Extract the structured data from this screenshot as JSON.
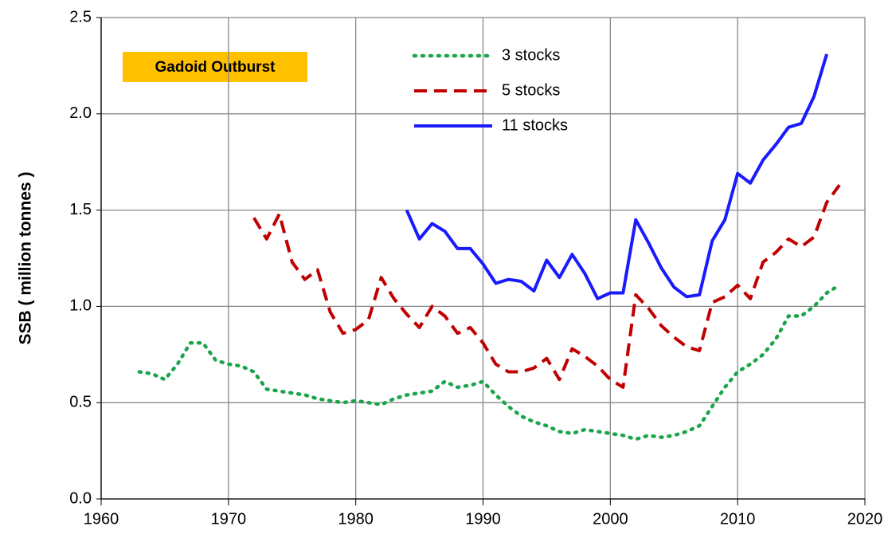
{
  "chart_data": {
    "type": "line",
    "ylabel": "SSB ( million tonnes )",
    "annotation": "Gadoid Outburst",
    "legend": "upper center",
    "grid": true,
    "xlim": [
      1960,
      2020
    ],
    "xticks": [
      1960,
      1970,
      1980,
      1990,
      2000,
      2010,
      2020
    ],
    "ylim": [
      0,
      2.5
    ],
    "yticks": [
      {
        "value": 0,
        "label": "0.0"
      },
      0.5,
      {
        "value": 1,
        "label": "1.0"
      },
      1.5,
      {
        "value": 2,
        "label": "2.0"
      },
      2.5
    ],
    "x": [
      1963,
      1964,
      1965,
      1966,
      1967,
      1968,
      1969,
      1970,
      1971,
      1972,
      1973,
      1974,
      1975,
      1976,
      1977,
      1978,
      1979,
      1980,
      1981,
      1982,
      1983,
      1984,
      1985,
      1986,
      1987,
      1988,
      1989,
      1990,
      1991,
      1992,
      1993,
      1994,
      1995,
      1996,
      1997,
      1998,
      1999,
      2000,
      2001,
      2002,
      2003,
      2004,
      2005,
      2006,
      2007,
      2008,
      2009,
      2010,
      2011,
      2012,
      2013,
      2014,
      2015,
      2016,
      2017,
      2018
    ],
    "series": [
      {
        "name": "3 stocks",
        "color": "#1aa54a",
        "style": "dotted",
        "values": [
          0.66,
          0.65,
          0.62,
          0.7,
          0.81,
          0.81,
          0.72,
          0.7,
          0.69,
          0.66,
          0.57,
          0.56,
          0.55,
          0.54,
          0.52,
          0.51,
          0.5,
          0.51,
          0.5,
          0.49,
          0.52,
          0.54,
          0.55,
          0.56,
          0.61,
          0.58,
          0.59,
          0.61,
          0.54,
          0.48,
          0.43,
          0.4,
          0.38,
          0.35,
          0.34,
          0.36,
          0.35,
          0.34,
          0.33,
          0.31,
          0.33,
          0.32,
          0.33,
          0.35,
          0.38,
          0.48,
          0.58,
          0.66,
          0.7,
          0.75,
          0.83,
          0.95,
          0.95,
          1.0,
          1.07,
          1.11
        ]
      },
      {
        "name": "5 stocks",
        "color": "#c00000",
        "style": "dashed",
        "values": [
          null,
          null,
          null,
          null,
          null,
          null,
          null,
          null,
          null,
          1.46,
          1.35,
          1.48,
          1.23,
          1.14,
          1.19,
          0.97,
          0.86,
          0.88,
          0.93,
          1.15,
          1.04,
          0.96,
          0.89,
          1.0,
          0.95,
          0.86,
          0.89,
          0.81,
          0.7,
          0.66,
          0.66,
          0.68,
          0.73,
          0.62,
          0.78,
          0.74,
          0.69,
          0.62,
          0.58,
          1.06,
          0.99,
          0.9,
          0.84,
          0.79,
          0.77,
          1.02,
          1.05,
          1.11,
          1.04,
          1.23,
          1.28,
          1.35,
          1.31,
          1.36,
          1.54,
          1.63
        ]
      },
      {
        "name": "11 stocks",
        "color": "#1a1aff",
        "style": "solid",
        "values": [
          null,
          null,
          null,
          null,
          null,
          null,
          null,
          null,
          null,
          null,
          null,
          null,
          null,
          null,
          null,
          null,
          null,
          null,
          null,
          null,
          null,
          1.5,
          1.35,
          1.43,
          1.39,
          1.3,
          1.3,
          1.22,
          1.12,
          1.14,
          1.13,
          1.08,
          1.24,
          1.15,
          1.27,
          1.17,
          1.04,
          1.07,
          1.07,
          1.45,
          1.33,
          1.2,
          1.1,
          1.05,
          1.06,
          1.34,
          1.45,
          1.69,
          1.64,
          1.76,
          1.84,
          1.93,
          1.95,
          2.09,
          2.31,
          null
        ]
      }
    ]
  }
}
